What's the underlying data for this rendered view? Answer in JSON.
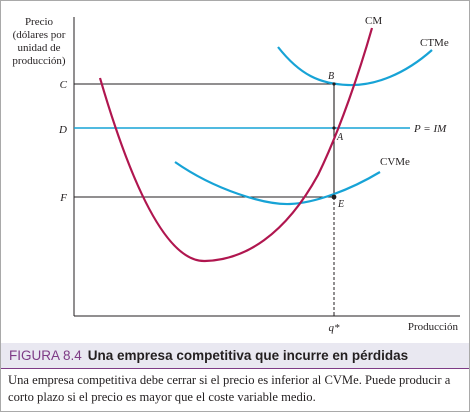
{
  "figure": {
    "y_axis_label_lines": [
      "Precio",
      "(dólares por",
      "unidad de",
      "producción)"
    ],
    "x_axis_label": "Producción",
    "price_levels": [
      {
        "label": "C"
      },
      {
        "label": "D"
      },
      {
        "label": "F"
      }
    ],
    "quantity_label": "q*",
    "curve_labels": {
      "cm": "CM",
      "ctme": "CTMe",
      "cvme": "CVMe",
      "p_im": "P = IM"
    },
    "point_labels": [
      "B",
      "A",
      "E"
    ],
    "colors": {
      "cm_curve": "#b0164f",
      "average_curves": "#17a3d6",
      "caption_accent": "#7e3b86",
      "caption_background": "#e9e8f1"
    }
  },
  "caption": {
    "number": "FIGURA 8.4",
    "title": "Una empresa competitiva que incurre en pérdidas",
    "body": "Una empresa competitiva debe cerrar si el precio es inferior al CVMe. Puede producir a corto plazo si el precio es mayor que el coste variable medio."
  }
}
